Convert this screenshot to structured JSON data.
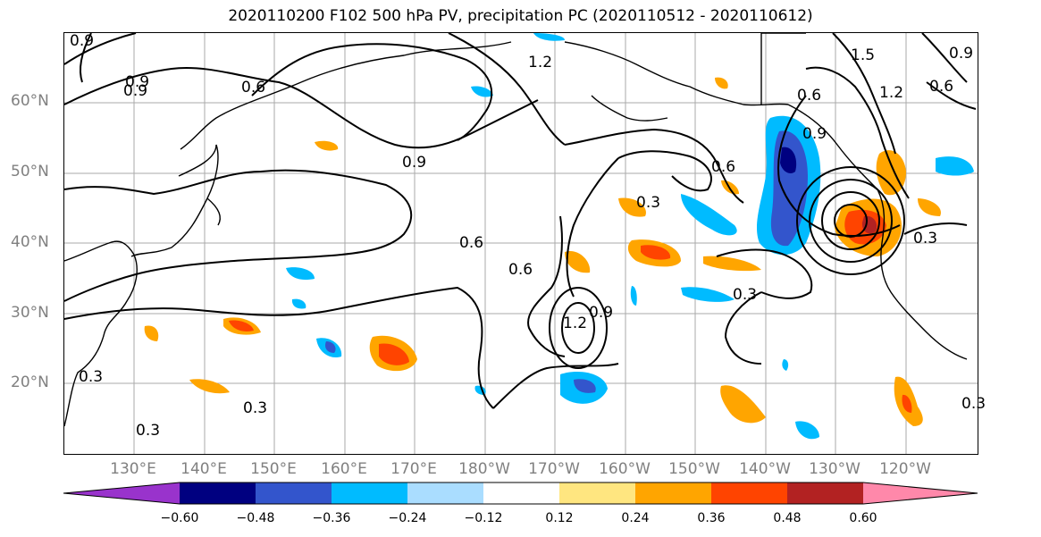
{
  "title": "2020110200 F102 500 hPa PV, precipitation PC (2020110512 - 2020110612)",
  "lat_labels": [
    "60°N",
    "50°N",
    "40°N",
    "30°N",
    "20°N"
  ],
  "lon_labels": [
    "130°E",
    "140°E",
    "150°E",
    "160°E",
    "170°E",
    "180°W",
    "170°W",
    "160°W",
    "150°W",
    "140°W",
    "130°W",
    "120°W"
  ],
  "contour_labels": [
    "0.9",
    "0.6",
    "1.2",
    "0.9",
    "0.9",
    "0.6",
    "0.3",
    "0.6",
    "0.6",
    "1.2",
    "0.9",
    "0.3",
    "0.3",
    "0.3",
    "0.3",
    "1.5",
    "0.9",
    "0.6",
    "1.2",
    "0.6",
    "0.3",
    "0.3",
    "0.9",
    "0.9"
  ],
  "colorbar": {
    "tick_labels": [
      "−0.60",
      "−0.48",
      "−0.36",
      "−0.24",
      "−0.12",
      "0.12",
      "0.24",
      "0.36",
      "0.48",
      "0.60"
    ],
    "colors": [
      "#9933cc",
      "#000080",
      "#3355cc",
      "#00bbff",
      "#aaddff",
      "#ffffff",
      "#ffe680",
      "#ffa500",
      "#ff4400",
      "#b22222",
      "#ff88aa"
    ]
  }
}
